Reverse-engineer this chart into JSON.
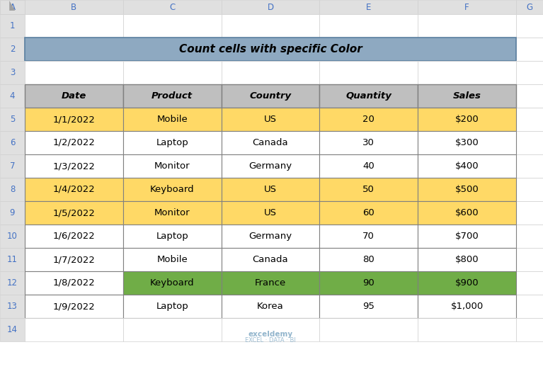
{
  "title": "Count cells with specific Color",
  "title_bg": "#8EA9C1",
  "title_border": "#5A7FA0",
  "headers": [
    "Date",
    "Product",
    "Country",
    "Quantity",
    "Sales"
  ],
  "header_bg": "#BFBFBF",
  "rows": [
    [
      "1/1/2022",
      "Mobile",
      "US",
      "20",
      "$200"
    ],
    [
      "1/2/2022",
      "Laptop",
      "Canada",
      "30",
      "$300"
    ],
    [
      "1/3/2022",
      "Monitor",
      "Germany",
      "40",
      "$400"
    ],
    [
      "1/4/2022",
      "Keyboard",
      "US",
      "50",
      "$500"
    ],
    [
      "1/5/2022",
      "Monitor",
      "US",
      "60",
      "$600"
    ],
    [
      "1/6/2022",
      "Laptop",
      "Germany",
      "70",
      "$700"
    ],
    [
      "1/7/2022",
      "Mobile",
      "Canada",
      "80",
      "$800"
    ],
    [
      "1/8/2022",
      "Keyboard",
      "France",
      "90",
      "$900"
    ],
    [
      "1/9/2022",
      "Laptop",
      "Korea",
      "95",
      "$1,000"
    ]
  ],
  "row_colors": [
    [
      "#FFD966",
      "#FFD966",
      "#FFD966",
      "#FFD966",
      "#FFD966"
    ],
    [
      "#FFFFFF",
      "#FFFFFF",
      "#FFFFFF",
      "#FFFFFF",
      "#FFFFFF"
    ],
    [
      "#FFFFFF",
      "#FFFFFF",
      "#FFFFFF",
      "#FFFFFF",
      "#FFFFFF"
    ],
    [
      "#FFD966",
      "#FFD966",
      "#FFD966",
      "#FFD966",
      "#FFD966"
    ],
    [
      "#FFD966",
      "#FFD966",
      "#FFD966",
      "#FFD966",
      "#FFD966"
    ],
    [
      "#FFFFFF",
      "#FFFFFF",
      "#FFFFFF",
      "#FFFFFF",
      "#FFFFFF"
    ],
    [
      "#FFFFFF",
      "#FFFFFF",
      "#FFFFFF",
      "#FFFFFF",
      "#FFFFFF"
    ],
    [
      "#FFFFFF",
      "#70AD47",
      "#70AD47",
      "#70AD47",
      "#70AD47"
    ],
    [
      "#FFFFFF",
      "#FFFFFF",
      "#FFFFFF",
      "#FFFFFF",
      "#FFFFFF"
    ]
  ],
  "col_labels": [
    "A",
    "B",
    "C",
    "D",
    "E",
    "F",
    "G"
  ],
  "row_labels": [
    "1",
    "2",
    "3",
    "4",
    "5",
    "6",
    "7",
    "8",
    "9",
    "10",
    "11",
    "12",
    "13",
    "14"
  ],
  "fig_bg": "#F2F2F2",
  "excel_header_bg": "#E0E0E0",
  "excel_header_text": "#4472C4",
  "grid_color": "#D0D0D0",
  "data_border": "#808080",
  "watermark_text": "exceldemy",
  "watermark_sub": "EXCEL · DATA · BI",
  "watermark_color": "#7FA8C4"
}
